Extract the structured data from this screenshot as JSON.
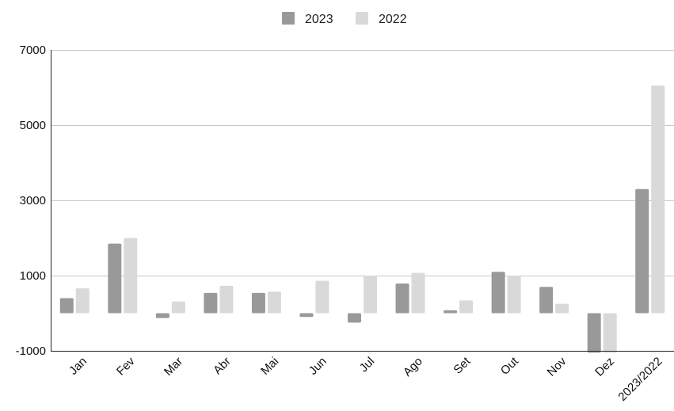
{
  "chart_data": {
    "type": "bar",
    "categories": [
      "Jan",
      "Fev",
      "Mar",
      "Abr",
      "Mai",
      "Jun",
      "Jul",
      "Ago",
      "Set",
      "Out",
      "Nov",
      "Dez",
      "2023/2022"
    ],
    "series": [
      {
        "name": "2023",
        "color": "#999999",
        "values": [
          400,
          1850,
          -130,
          540,
          540,
          -100,
          -250,
          790,
          80,
          1100,
          700,
          -1050,
          3300
        ]
      },
      {
        "name": "2022",
        "color": "#d9d9d9",
        "values": [
          660,
          2000,
          310,
          730,
          570,
          860,
          1000,
          1070,
          340,
          1000,
          250,
          -1050,
          6050
        ]
      }
    ],
    "yticks": [
      -1000,
      1000,
      3000,
      5000,
      7000
    ],
    "ylim": [
      -1000,
      7000
    ],
    "grid": true,
    "legend": "top-center",
    "title": "",
    "xlabel": "",
    "ylabel": ""
  }
}
